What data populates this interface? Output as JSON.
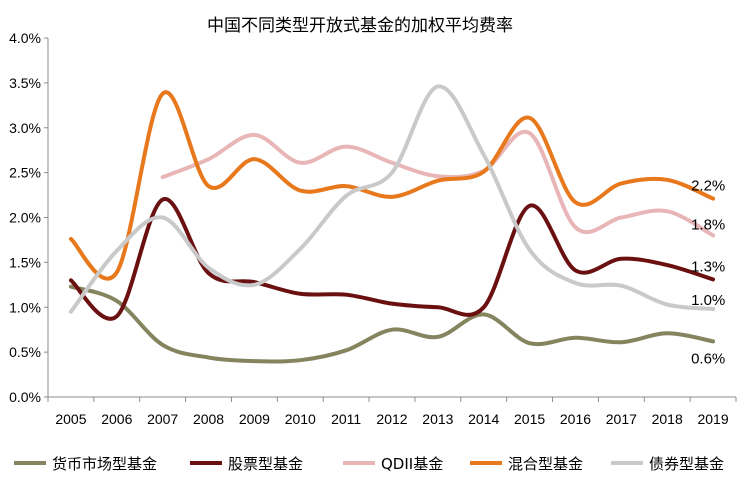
{
  "chart_data": {
    "type": "line",
    "title": "中国不同类型开放式基金的加权平均费率",
    "xlabel": "",
    "ylabel": "",
    "ylim": [
      0,
      4.0
    ],
    "y_ticks": [
      "0.0%",
      "0.5%",
      "1.0%",
      "1.5%",
      "2.0%",
      "2.5%",
      "3.0%",
      "3.5%",
      "4.0%"
    ],
    "categories": [
      "2005",
      "2006",
      "2007",
      "2008",
      "2009",
      "2010",
      "2011",
      "2012",
      "2013",
      "2014",
      "2015",
      "2016",
      "2017",
      "2018",
      "2019"
    ],
    "grid": false,
    "legend_position": "bottom",
    "series": [
      {
        "name": "货币市场型基金",
        "color": "#84845f",
        "values": [
          1.23,
          1.07,
          0.58,
          0.44,
          0.4,
          0.41,
          0.52,
          0.75,
          0.67,
          0.92,
          0.6,
          0.66,
          0.61,
          0.71,
          0.62
        ]
      },
      {
        "name": "股票型基金",
        "color": "#6b1010",
        "values": [
          1.3,
          0.9,
          2.2,
          1.38,
          1.28,
          1.15,
          1.14,
          1.04,
          1.0,
          1.0,
          2.13,
          1.41,
          1.54,
          1.47,
          1.31
        ]
      },
      {
        "name": "QDII基金",
        "color": "#e8b6b7",
        "values": [
          null,
          null,
          2.45,
          2.65,
          2.92,
          2.61,
          2.79,
          2.61,
          2.46,
          2.52,
          2.94,
          1.89,
          2.0,
          2.07,
          1.8
        ]
      },
      {
        "name": "混合型基金",
        "color": "#e8781c",
        "values": [
          1.76,
          1.39,
          3.38,
          2.35,
          2.65,
          2.3,
          2.35,
          2.23,
          2.41,
          2.51,
          3.11,
          2.17,
          2.38,
          2.42,
          2.21
        ]
      },
      {
        "name": "债券型基金",
        "color": "#c9c9c9",
        "values": [
          0.95,
          1.63,
          2.0,
          1.44,
          1.25,
          1.65,
          2.24,
          2.5,
          3.46,
          2.7,
          1.64,
          1.27,
          1.24,
          1.03,
          0.98
        ]
      }
    ],
    "end_labels": [
      {
        "series": "混合型基金",
        "text": "2.2%"
      },
      {
        "series": "QDII基金",
        "text": "1.8%"
      },
      {
        "series": "股票型基金",
        "text": "1.3%"
      },
      {
        "series": "债券型基金",
        "text": "1.0%"
      },
      {
        "series": "货币市场型基金",
        "text": "0.6%"
      }
    ]
  }
}
